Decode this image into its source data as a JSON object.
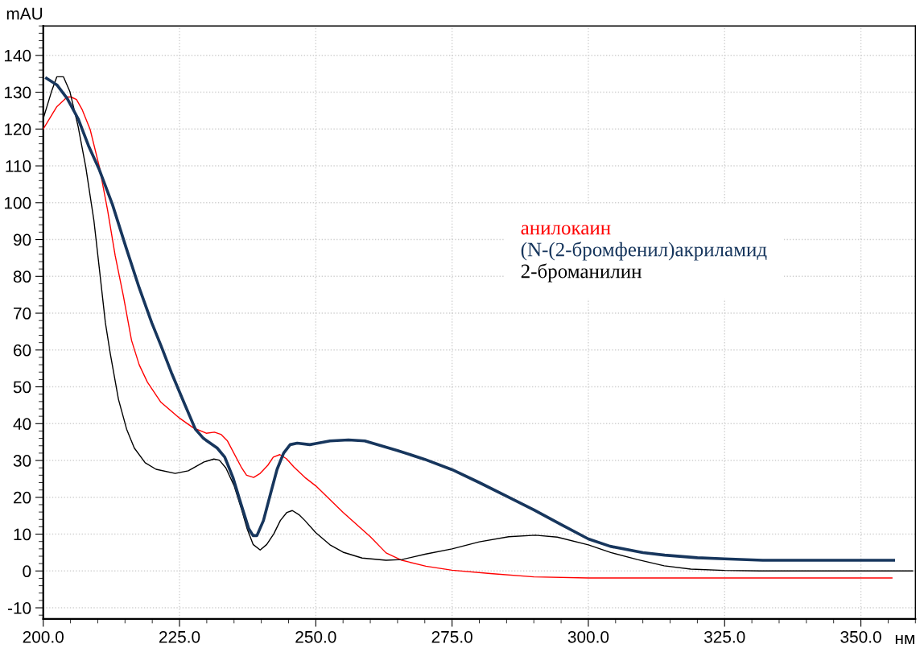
{
  "chart_data": {
    "type": "line",
    "xlabel": "нм",
    "ylabel": "mAU",
    "xlim": [
      200,
      360
    ],
    "ylim": [
      -13,
      148
    ],
    "xticks": [
      {
        "value": 200,
        "label": "200.0"
      },
      {
        "value": 225,
        "label": "225.0"
      },
      {
        "value": 250,
        "label": "250.0"
      },
      {
        "value": 275,
        "label": "275.0"
      },
      {
        "value": 300,
        "label": "300.0"
      },
      {
        "value": 325,
        "label": "325.0"
      },
      {
        "value": 350,
        "label": "350.0"
      }
    ],
    "yticks": [
      -10,
      0,
      10,
      20,
      30,
      40,
      50,
      60,
      70,
      80,
      90,
      100,
      110,
      120,
      130,
      140
    ],
    "grid": true,
    "legend": "center right",
    "marker": "none",
    "line_style": "solid",
    "series": [
      {
        "name": "анилокаин",
        "color": "#ff0000",
        "x": [
          200,
          202.5,
          204.4,
          205.1,
          206.1,
          207.1,
          208.6,
          210.3,
          211.8,
          213.2,
          214.7,
          216.2,
          217.6,
          219.1,
          221.6,
          225,
          227.5,
          229.9,
          231.4,
          232.6,
          233.8,
          236.4,
          237.3,
          238.6,
          239.8,
          241.2,
          242.2,
          243.4,
          244.6,
          246,
          248,
          250,
          255,
          260,
          262.9,
          265.8,
          270.2,
          275,
          282,
          290,
          300,
          320,
          340,
          355.7
        ],
        "values": [
          120,
          126.1,
          128.7,
          128.7,
          128,
          125.4,
          119.9,
          109.7,
          98,
          85.6,
          74.7,
          62.6,
          56,
          51.3,
          45.8,
          41.5,
          38.9,
          37.4,
          37.7,
          37.1,
          35.3,
          28,
          26,
          25.4,
          26.5,
          28.7,
          30.9,
          31.6,
          30.5,
          28.2,
          25.4,
          23.1,
          15.9,
          9.3,
          4.9,
          2.9,
          1.3,
          0.2,
          -0.7,
          -1.6,
          -1.9,
          -1.9,
          -1.9,
          -1.9
        ]
      },
      {
        "name": "(N-(2-бромфенил)акриламид",
        "color": "#17365d",
        "x": [
          200.6,
          202.5,
          204.4,
          206.4,
          208.3,
          210.3,
          212.7,
          215.2,
          217.6,
          219.9,
          221.6,
          223.5,
          226,
          227.9,
          229.4,
          231.9,
          233.3,
          234.8,
          236.3,
          237.7,
          238.5,
          239.2,
          240.4,
          241.7,
          242.9,
          244.1,
          245.3,
          246.6,
          248.9,
          250,
          252.6,
          256,
          259,
          265,
          270,
          275,
          280,
          285,
          290,
          295,
          300,
          304,
          310,
          314,
          320,
          325,
          332,
          356
        ],
        "values": [
          133.8,
          132,
          128.3,
          122.8,
          115.5,
          108.9,
          99.5,
          87.8,
          76.9,
          67.4,
          61.2,
          53.9,
          45.1,
          38.5,
          36,
          33.4,
          30.9,
          25.4,
          18.1,
          11.5,
          9.6,
          9.6,
          13.7,
          21,
          27.6,
          32,
          34.3,
          34.7,
          34.3,
          34.6,
          35.3,
          35.6,
          35.3,
          32.7,
          30.3,
          27.5,
          24,
          20.3,
          16.6,
          12.6,
          8.7,
          6.7,
          5,
          4.3,
          3.6,
          3.3,
          2.9,
          2.9
        ]
      },
      {
        "name": "2-броманилин",
        "color": "#000000",
        "x": [
          200,
          201.5,
          202.5,
          203.7,
          204.9,
          206.4,
          207.8,
          209.3,
          210.3,
          211.4,
          212.3,
          213.8,
          215.3,
          216.7,
          218.7,
          220.7,
          224.2,
          226.6,
          229.5,
          231.3,
          232.3,
          233.5,
          235,
          236.4,
          237.4,
          238.5,
          239.8,
          241,
          242.3,
          243.5,
          244.7,
          245.7,
          246.9,
          248,
          250,
          252.6,
          255,
          258.5,
          262.9,
          265.8,
          270.2,
          275,
          280,
          285.4,
          290.3,
          294.3,
          300,
          304.1,
          309,
          313.9,
          318.8,
          325,
          331.5,
          359.5
        ],
        "values": [
          122.8,
          130.1,
          134.2,
          134.2,
          130.1,
          120.7,
          109.7,
          95.1,
          82,
          67.4,
          59,
          46.6,
          38.5,
          33.4,
          29.4,
          27.6,
          26.5,
          27.2,
          29.6,
          30.4,
          30.1,
          28,
          23.2,
          16.6,
          11.5,
          7.2,
          5.7,
          7.2,
          10.1,
          13.7,
          15.9,
          16.4,
          15.3,
          13.7,
          10.4,
          7.1,
          5.1,
          3.5,
          2.9,
          3.1,
          4.6,
          6,
          7.9,
          9.3,
          9.7,
          9.2,
          7.1,
          5,
          3.1,
          1.4,
          0.5,
          0.15,
          0,
          0
        ]
      }
    ]
  }
}
